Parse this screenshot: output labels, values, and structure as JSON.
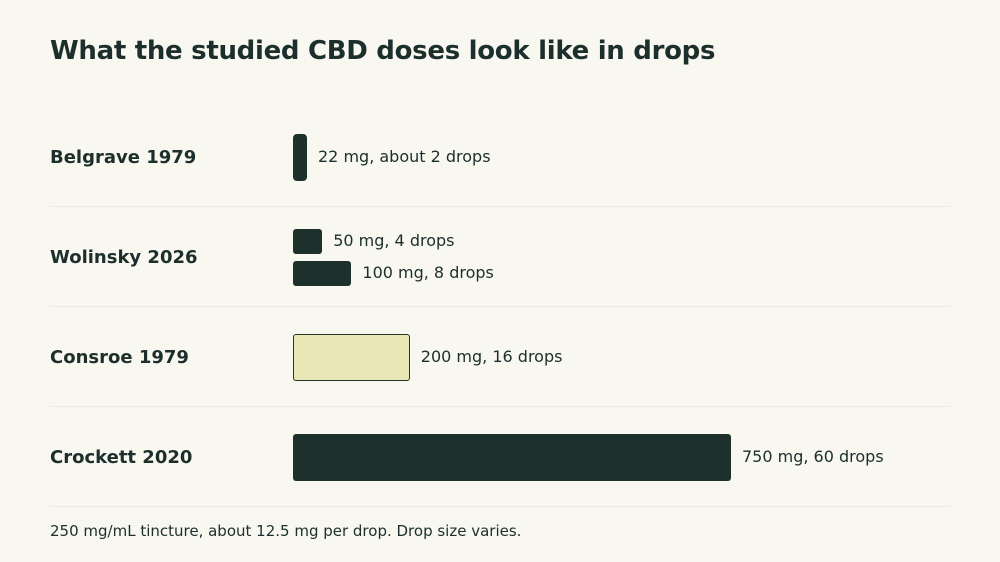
{
  "title": "What the studied CBD doses look like in drops",
  "chart_data": {
    "type": "bar",
    "orientation": "horizontal",
    "title": "What the studied CBD doses look like in drops",
    "unit": "mg",
    "xlim": [
      0,
      750
    ],
    "grid": false,
    "legend": "none",
    "colors": {
      "default": "#1e302c",
      "highlight": "#ebe6b5",
      "highlight_border": "#24352f"
    },
    "groups": [
      {
        "label": "Belgrave 1979",
        "bars": [
          {
            "mg": 22,
            "drops": 2,
            "label": "22 mg, about 2 drops",
            "highlight": false
          }
        ]
      },
      {
        "label": "Wolinsky 2026",
        "bars": [
          {
            "mg": 50,
            "drops": 4,
            "label": "50 mg, 4 drops",
            "highlight": false
          },
          {
            "mg": 100,
            "drops": 8,
            "label": "100 mg, 8 drops",
            "highlight": false
          }
        ]
      },
      {
        "label": "Consroe 1979",
        "bars": [
          {
            "mg": 200,
            "drops": 16,
            "label": "200 mg, 16 drops",
            "highlight": true
          }
        ]
      },
      {
        "label": "Crockett 2020",
        "bars": [
          {
            "mg": 750,
            "drops": 60,
            "label": "750 mg, 60 drops",
            "highlight": false
          }
        ]
      }
    ]
  },
  "footnote": "250 mg/mL tincture, about 12.5 mg per drop. Drop size varies."
}
